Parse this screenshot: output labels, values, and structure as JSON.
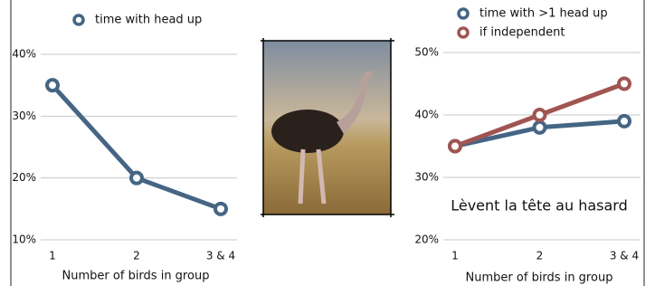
{
  "chart_data": [
    {
      "type": "line",
      "categories": [
        "1",
        "2",
        "3 & 4"
      ],
      "series": [
        {
          "name": "time with head up",
          "color": "#456584",
          "values": [
            35,
            20,
            15
          ]
        }
      ],
      "ylim": [
        10,
        40
      ],
      "yticks": [
        {
          "value": 10,
          "label": "10%"
        },
        {
          "value": 20,
          "label": "20%"
        },
        {
          "value": 30,
          "label": "30%"
        },
        {
          "value": 40,
          "label": "40%"
        }
      ],
      "xlabel": "Number of birds in group",
      "grid": true
    },
    {
      "type": "line",
      "categories": [
        "1",
        "2",
        "3 & 4"
      ],
      "series": [
        {
          "name": "time with >1 head up",
          "color": "#456584",
          "values": [
            35,
            38,
            39
          ]
        },
        {
          "name": "if independent",
          "color": "#a05552",
          "values": [
            35,
            40,
            45
          ]
        }
      ],
      "ylim": [
        20,
        50
      ],
      "yticks": [
        {
          "value": 20,
          "label": "20%"
        },
        {
          "value": 30,
          "label": "30%"
        },
        {
          "value": 40,
          "label": "40%"
        },
        {
          "value": 50,
          "label": "50%"
        }
      ],
      "xlabel": "Number of birds in group",
      "annotation": "Lèvent la tête au hasard",
      "grid": true
    }
  ]
}
